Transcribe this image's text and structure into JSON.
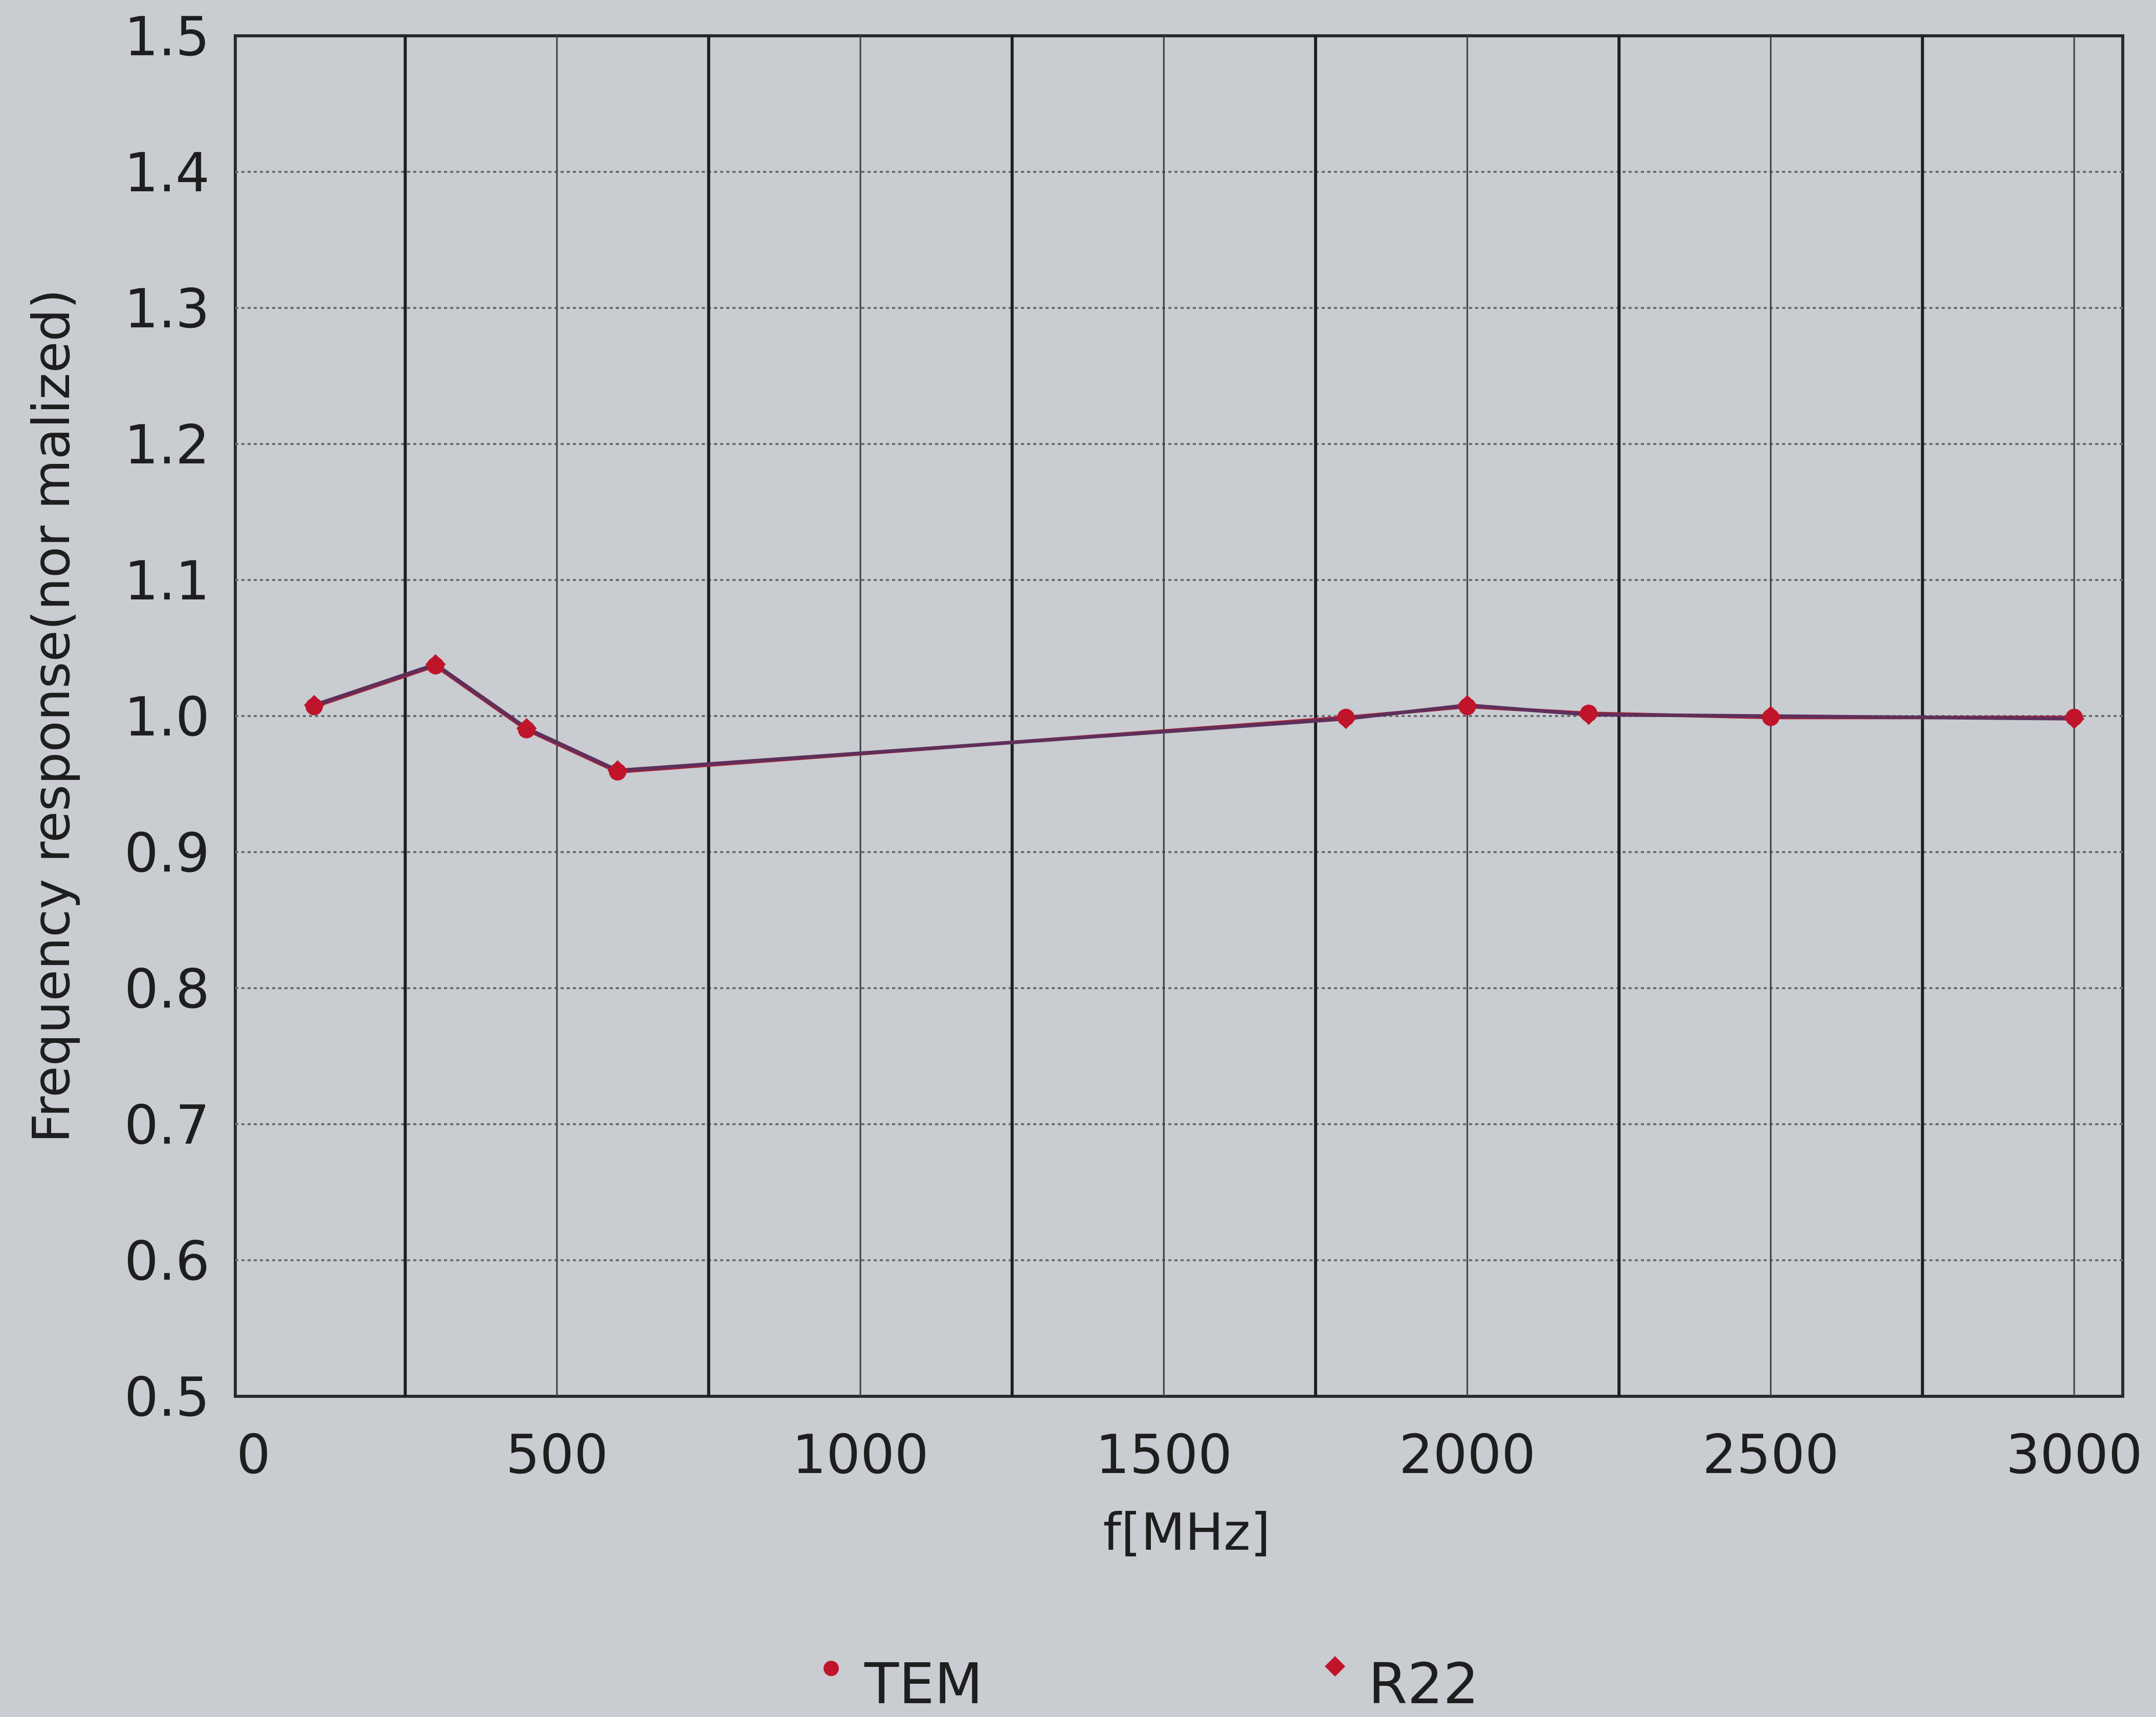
{
  "chart_data": {
    "type": "line",
    "title": "",
    "xlabel": "f[MHz]",
    "ylabel": "Frequency response(nor malized)",
    "xlim": [
      -30,
      3080
    ],
    "ylim": [
      0.5,
      1.5
    ],
    "x_ticks": [
      0,
      500,
      1000,
      1500,
      2000,
      2500,
      3000
    ],
    "y_ticks": [
      0.5,
      0.6,
      0.7,
      0.8,
      0.9,
      1.0,
      1.1,
      1.2,
      1.3,
      1.4,
      1.5
    ],
    "grid": true,
    "legend_position": "bottom",
    "series": [
      {
        "name": "TEM",
        "marker": "circle",
        "color": "#c0142b",
        "x": [
          100,
          300,
          450,
          600,
          1800,
          2000,
          2200,
          2500,
          3000
        ],
        "values": [
          1.007,
          1.037,
          0.99,
          0.959,
          0.999,
          1.007,
          1.002,
          0.999,
          0.999
        ]
      },
      {
        "name": "R22",
        "marker": "diamond",
        "color": "#c0142b",
        "x": [
          100,
          300,
          450,
          600,
          1800,
          2000,
          2200,
          2500,
          3000
        ],
        "values": [
          1.008,
          1.038,
          0.991,
          0.96,
          0.998,
          1.008,
          1.001,
          1.0,
          0.998
        ]
      }
    ]
  }
}
